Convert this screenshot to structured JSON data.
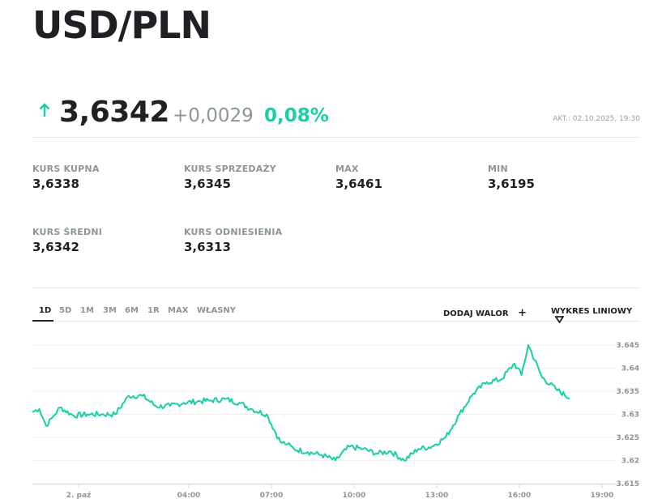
{
  "header": {
    "title": "USD/PLN"
  },
  "quote": {
    "direction_icon": "arrow-up-icon",
    "price": "3,6342",
    "change": "+0,0029",
    "change_pct": "0,08%",
    "updated": "AKT.: 02.10.2025, 19:30",
    "accent_color": "#19cfa6"
  },
  "stats": [
    {
      "label": "KURS KUPNA",
      "value": "3,6338"
    },
    {
      "label": "KURS SPRZEDAŻY",
      "value": "3,6345"
    },
    {
      "label": "MAX",
      "value": "3,6461"
    },
    {
      "label": "MIN",
      "value": "3,6195"
    },
    {
      "label": "KURS ŚREDNI",
      "value": "3,6342"
    },
    {
      "label": "KURS ODNIESIENIA",
      "value": "3,6313"
    }
  ],
  "range_tabs": [
    {
      "label": "1D",
      "active": true
    },
    {
      "label": "5D"
    },
    {
      "label": "1M"
    },
    {
      "label": "3M"
    },
    {
      "label": "6M"
    },
    {
      "label": "1R"
    },
    {
      "label": "MAX"
    },
    {
      "label": "WŁASNY"
    }
  ],
  "actions": {
    "add_asset": "DODAJ WALOR",
    "add_icon": "plus-icon",
    "chart_type": "WYKRES LINIOWY",
    "chart_type_icon": "triangle-down-icon"
  },
  "chart_data": {
    "type": "line",
    "title": "USD/PLN 1D",
    "xlabel": "",
    "ylabel": "",
    "ylim": [
      3.615,
      3.647
    ],
    "y_ticks": [
      "3.645",
      "3.64",
      "3.635",
      "3.63",
      "3.625",
      "3.62",
      "3.615"
    ],
    "x_ticks": [
      "2. paź",
      "04:00",
      "07:00",
      "10:00",
      "13:00",
      "16:00",
      "19:00"
    ],
    "grid": true,
    "line_color": "#19cfa6",
    "series": [
      {
        "name": "USD/PLN",
        "x": [
          "00:00",
          "00:15",
          "00:30",
          "00:45",
          "01:00",
          "01:30",
          "02:00",
          "02:30",
          "03:00",
          "03:30",
          "04:00",
          "04:30",
          "05:00",
          "05:30",
          "06:00",
          "06:30",
          "07:00",
          "07:30",
          "08:00",
          "08:30",
          "09:00",
          "09:15",
          "09:30",
          "10:00",
          "10:30",
          "11:00",
          "11:30",
          "12:00",
          "12:30",
          "13:00",
          "13:30",
          "14:00",
          "14:30",
          "15:00",
          "15:30",
          "16:00",
          "16:30",
          "17:00",
          "17:30",
          "17:45",
          "18:00",
          "18:30",
          "19:00",
          "19:30"
        ],
        "values": [
          3.6305,
          3.6312,
          3.6275,
          3.6295,
          3.6315,
          3.6297,
          3.63,
          3.63,
          3.63,
          3.634,
          3.634,
          3.6317,
          3.6318,
          3.6325,
          3.6328,
          3.633,
          3.6333,
          3.6325,
          3.631,
          3.63,
          3.624,
          3.6235,
          3.6225,
          3.6218,
          3.6212,
          3.62,
          3.623,
          3.6225,
          3.6215,
          3.622,
          3.62,
          3.6225,
          3.623,
          3.625,
          3.63,
          3.6345,
          3.637,
          3.6375,
          3.641,
          3.6385,
          3.645,
          3.638,
          3.6355,
          3.6335
        ]
      }
    ]
  }
}
